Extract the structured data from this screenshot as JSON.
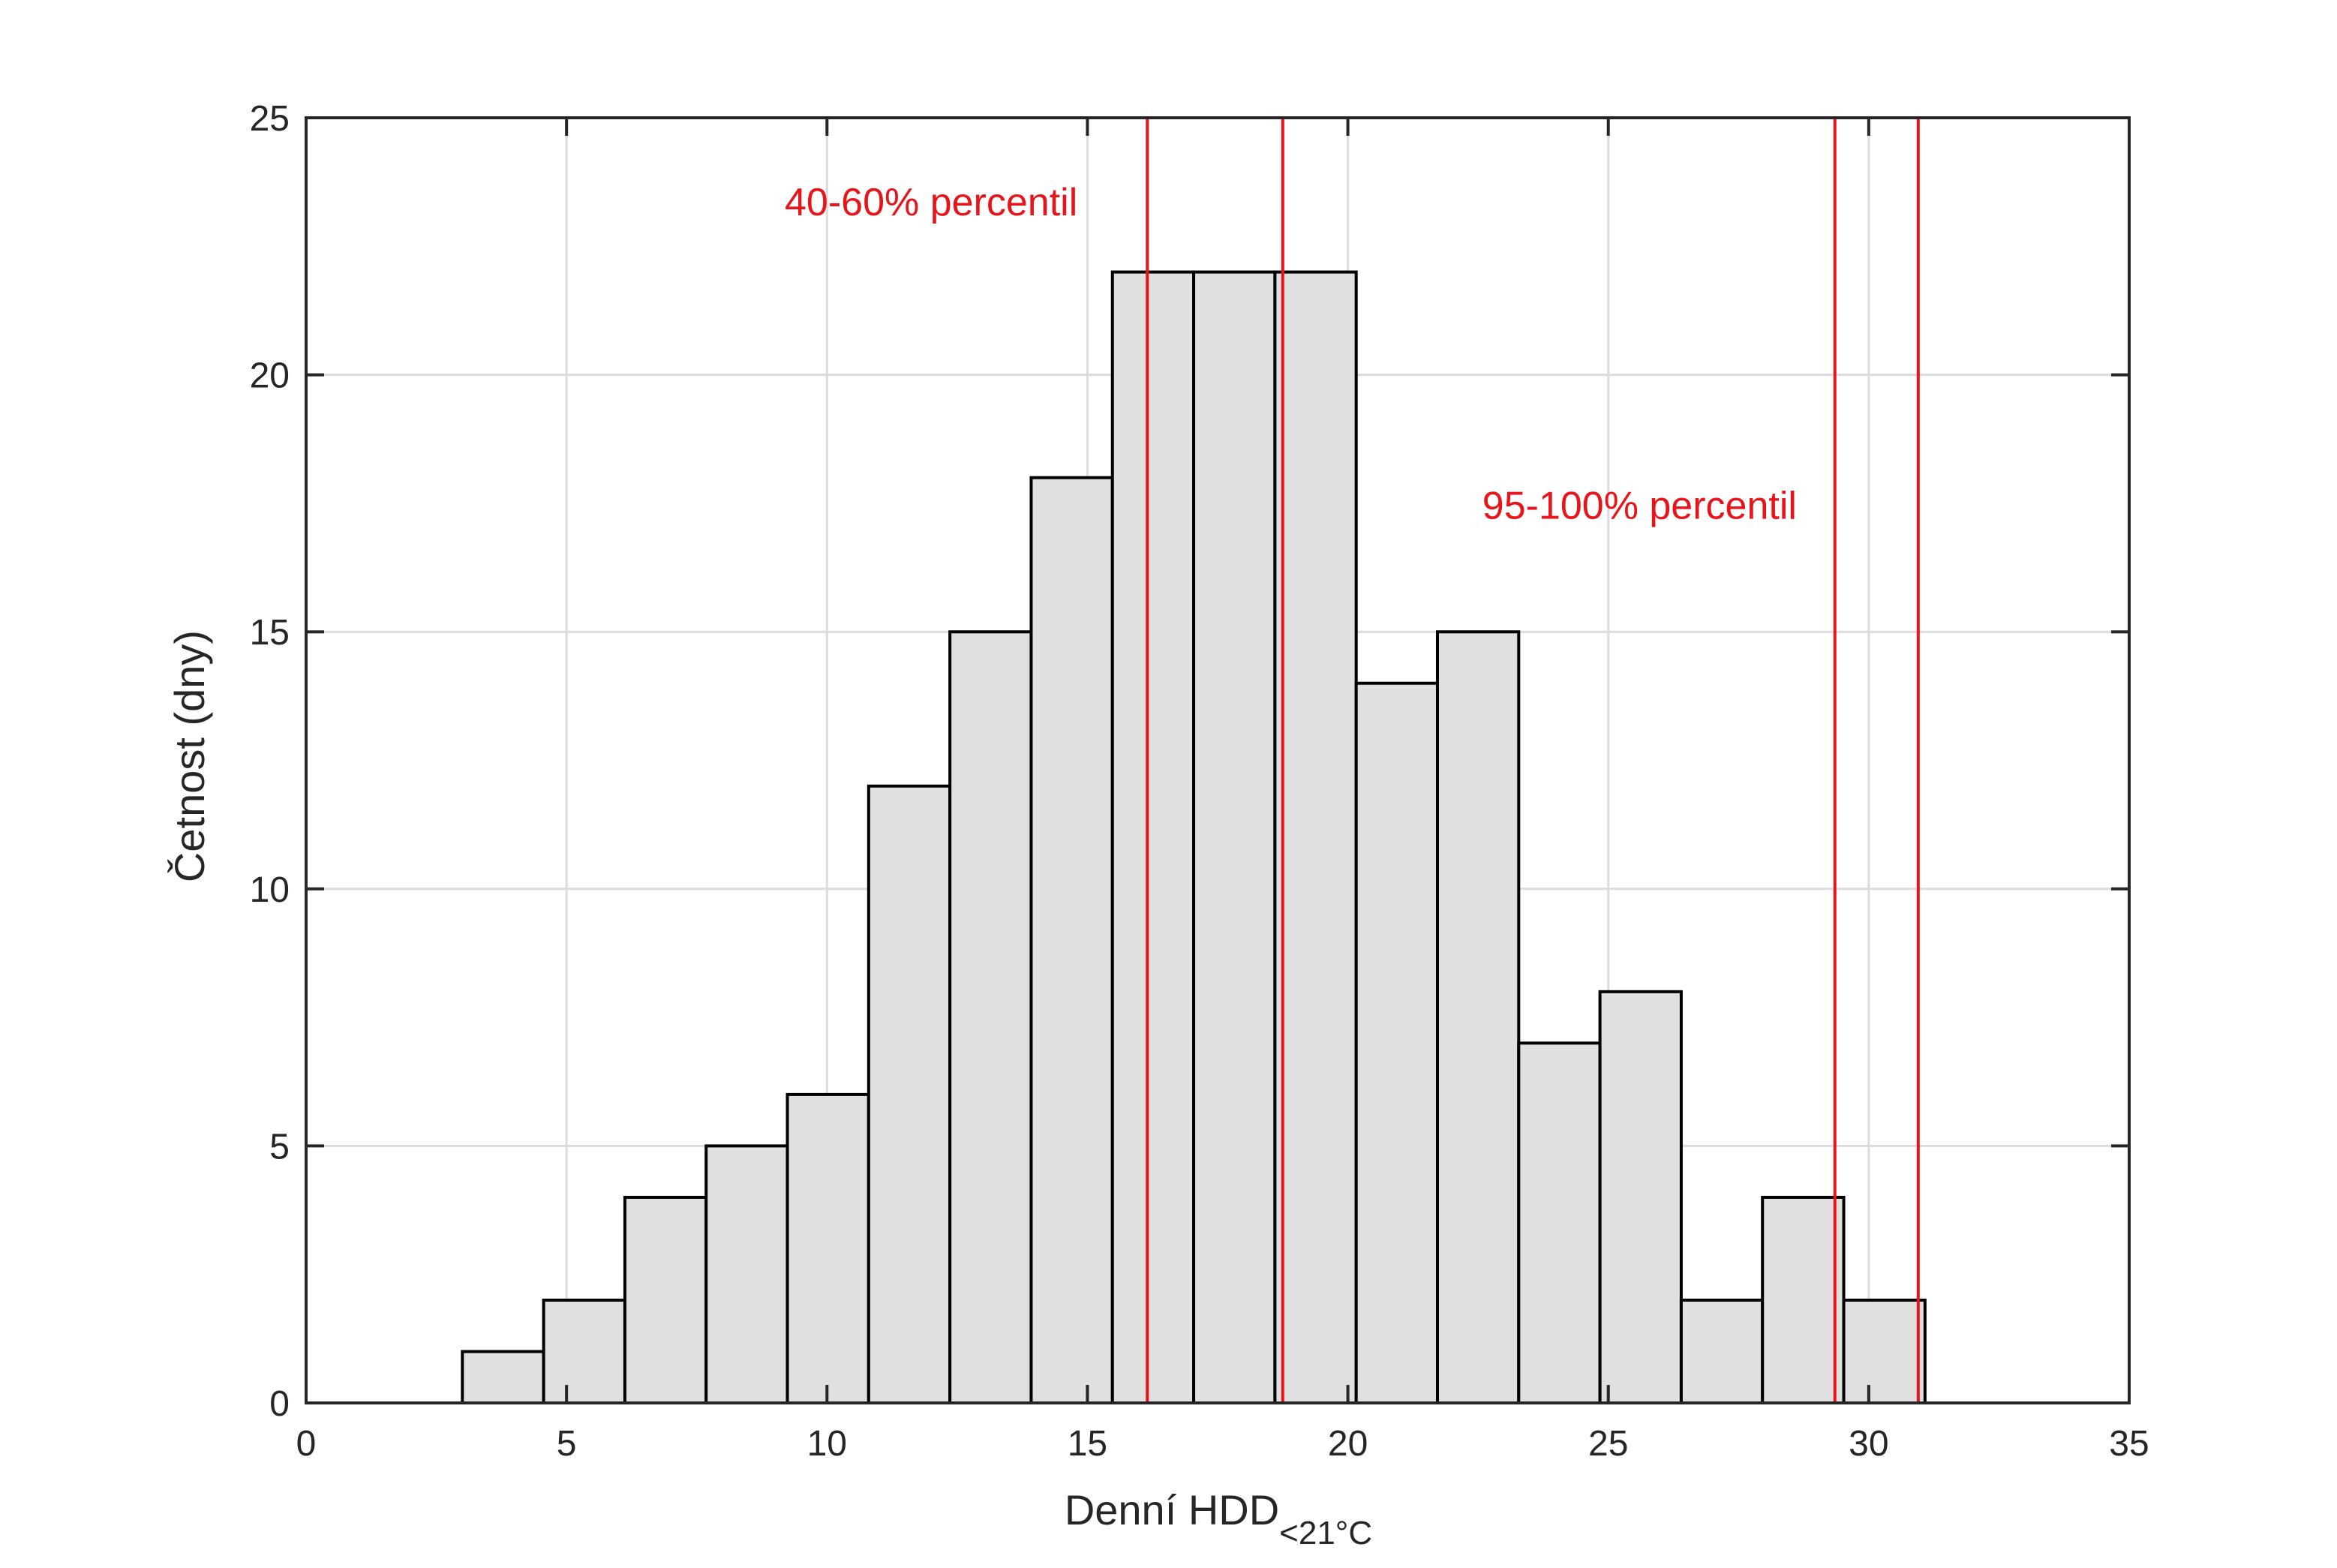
{
  "chart_data": {
    "type": "bar",
    "subtype": "histogram",
    "xlabel": "Denní HDD",
    "xlabel_subscript": "<21°C",
    "ylabel": "Četnost (dny)",
    "xlim": [
      0,
      35
    ],
    "ylim": [
      0,
      25
    ],
    "xticks": [
      "0",
      "5",
      "10",
      "15",
      "20",
      "25",
      "30",
      "35"
    ],
    "yticks": [
      "0",
      "5",
      "10",
      "15",
      "20",
      "25"
    ],
    "grid": true,
    "bar_fill": "#e0e0e0",
    "bar_edge": "#000000",
    "bins": [
      {
        "x0": 3.0,
        "x1": 4.56,
        "count": 1
      },
      {
        "x0": 4.56,
        "x1": 6.12,
        "count": 2
      },
      {
        "x0": 6.12,
        "x1": 7.68,
        "count": 4
      },
      {
        "x0": 7.68,
        "x1": 9.24,
        "count": 5
      },
      {
        "x0": 9.24,
        "x1": 10.8,
        "count": 6
      },
      {
        "x0": 10.8,
        "x1": 12.36,
        "count": 12
      },
      {
        "x0": 12.36,
        "x1": 13.92,
        "count": 15
      },
      {
        "x0": 13.92,
        "x1": 15.48,
        "count": 18
      },
      {
        "x0": 15.48,
        "x1": 17.04,
        "count": 22
      },
      {
        "x0": 17.04,
        "x1": 18.6,
        "count": 22
      },
      {
        "x0": 18.6,
        "x1": 20.16,
        "count": 22
      },
      {
        "x0": 20.16,
        "x1": 21.72,
        "count": 14
      },
      {
        "x0": 21.72,
        "x1": 23.28,
        "count": 15
      },
      {
        "x0": 23.28,
        "x1": 24.84,
        "count": 7
      },
      {
        "x0": 24.84,
        "x1": 26.4,
        "count": 8
      },
      {
        "x0": 26.4,
        "x1": 27.96,
        "count": 2
      },
      {
        "x0": 27.96,
        "x1": 29.52,
        "count": 4
      },
      {
        "x0": 29.52,
        "x1": 31.08,
        "count": 2
      }
    ],
    "reference_lines": {
      "color": "#e8141a",
      "x": [
        16.15,
        18.75,
        29.35,
        30.95
      ]
    },
    "annotations": [
      {
        "text": "40-60% percentil",
        "x": 12.0,
        "y": 23.1
      },
      {
        "text": "95-100% percentil",
        "x": 25.6,
        "y": 17.2
      }
    ]
  }
}
